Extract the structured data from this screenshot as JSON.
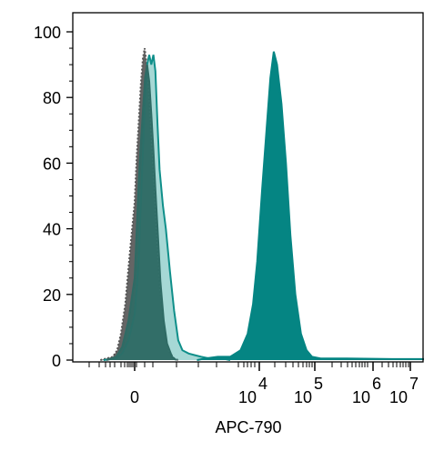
{
  "chart_data": {
    "type": "area",
    "xlabel": "APC-790",
    "ylabel": "",
    "ylim": [
      0,
      105
    ],
    "y_ticks": [
      0,
      20,
      40,
      60,
      80,
      100
    ],
    "x_ticks": [
      {
        "label": "0",
        "exp": ""
      },
      {
        "label": "10",
        "exp": "4"
      },
      {
        "label": "10",
        "exp": "5"
      },
      {
        "label": "10",
        "exp": "6"
      },
      {
        "label": "10",
        "exp": "7"
      }
    ],
    "x_scale": "biexponential",
    "grid": false,
    "legend": "none",
    "series": [
      {
        "style": "grey-fill-dotted-outline",
        "fill": "#4a4a4a",
        "fill_opacity": 0.85,
        "stroke": "#555555",
        "points": [
          [
            -0.55,
            0
          ],
          [
            -0.35,
            1
          ],
          [
            -0.28,
            3
          ],
          [
            -0.22,
            8
          ],
          [
            -0.15,
            17
          ],
          [
            -0.08,
            32
          ],
          [
            0,
            48
          ],
          [
            0.05,
            62
          ],
          [
            0.1,
            73
          ],
          [
            0.15,
            84
          ],
          [
            0.2,
            92
          ],
          [
            0.24,
            95
          ],
          [
            0.28,
            91
          ],
          [
            0.33,
            82
          ],
          [
            0.38,
            70
          ],
          [
            0.45,
            54
          ],
          [
            0.52,
            38
          ],
          [
            0.6,
            22
          ],
          [
            0.7,
            10
          ],
          [
            0.8,
            3
          ],
          [
            0.95,
            0.5
          ],
          [
            1.05,
            0
          ]
        ]
      },
      {
        "style": "teal-light-fill",
        "fill": "#3aa8a2",
        "fill_opacity": 0.45,
        "stroke": "#0f8f8a",
        "points": [
          [
            -0.5,
            0
          ],
          [
            -0.3,
            0.5
          ],
          [
            -0.2,
            2
          ],
          [
            -0.1,
            6
          ],
          [
            0,
            14
          ],
          [
            0.05,
            22
          ],
          [
            0.1,
            32
          ],
          [
            0.15,
            48
          ],
          [
            0.2,
            64
          ],
          [
            0.25,
            80
          ],
          [
            0.3,
            90
          ],
          [
            0.35,
            93
          ],
          [
            0.4,
            90
          ],
          [
            0.45,
            93
          ],
          [
            0.5,
            88
          ],
          [
            0.55,
            72
          ],
          [
            0.6,
            58
          ],
          [
            0.68,
            47
          ],
          [
            0.75,
            40
          ],
          [
            0.85,
            27
          ],
          [
            0.95,
            15
          ],
          [
            1.05,
            6
          ],
          [
            1.15,
            3
          ],
          [
            1.3,
            2
          ],
          [
            1.45,
            1.5
          ],
          [
            1.6,
            1
          ],
          [
            1.8,
            0.5
          ],
          [
            2.1,
            0.5
          ],
          [
            2.3,
            0
          ]
        ]
      },
      {
        "style": "dark-teal-fill",
        "fill": "#2f6b65",
        "fill_opacity": 0.9,
        "stroke": "#2f6b65",
        "points": [
          [
            -0.45,
            0
          ],
          [
            -0.3,
            1
          ],
          [
            -0.2,
            4
          ],
          [
            -0.1,
            12
          ],
          [
            0,
            25
          ],
          [
            0.05,
            40
          ],
          [
            0.1,
            55
          ],
          [
            0.15,
            66
          ],
          [
            0.2,
            76
          ],
          [
            0.25,
            86
          ],
          [
            0.3,
            90
          ],
          [
            0.35,
            85
          ],
          [
            0.4,
            75
          ],
          [
            0.45,
            64
          ],
          [
            0.5,
            52
          ],
          [
            0.56,
            38
          ],
          [
            0.62,
            24
          ],
          [
            0.7,
            12
          ],
          [
            0.78,
            5
          ],
          [
            0.9,
            1
          ],
          [
            1.0,
            0
          ]
        ]
      },
      {
        "style": "teal-solid-fill",
        "fill": "#058583",
        "fill_opacity": 1,
        "stroke": "#058583",
        "points": [
          [
            1.5,
            0
          ],
          [
            1.7,
            0.5
          ],
          [
            2.0,
            1
          ],
          [
            2.3,
            1
          ],
          [
            2.55,
            3
          ],
          [
            2.72,
            8
          ],
          [
            2.85,
            17
          ],
          [
            2.95,
            30
          ],
          [
            3.05,
            52
          ],
          [
            3.13,
            70
          ],
          [
            3.2,
            86
          ],
          [
            3.26,
            94
          ],
          [
            3.32,
            90
          ],
          [
            3.4,
            78
          ],
          [
            3.48,
            60
          ],
          [
            3.56,
            38
          ],
          [
            3.65,
            20
          ],
          [
            3.75,
            8
          ],
          [
            3.85,
            3
          ],
          [
            3.95,
            1
          ],
          [
            4.1,
            0.5
          ],
          [
            4.5,
            0.5
          ],
          [
            5.5,
            0.3
          ],
          [
            6.5,
            0.3
          ],
          [
            7.3,
            0
          ]
        ]
      }
    ]
  }
}
